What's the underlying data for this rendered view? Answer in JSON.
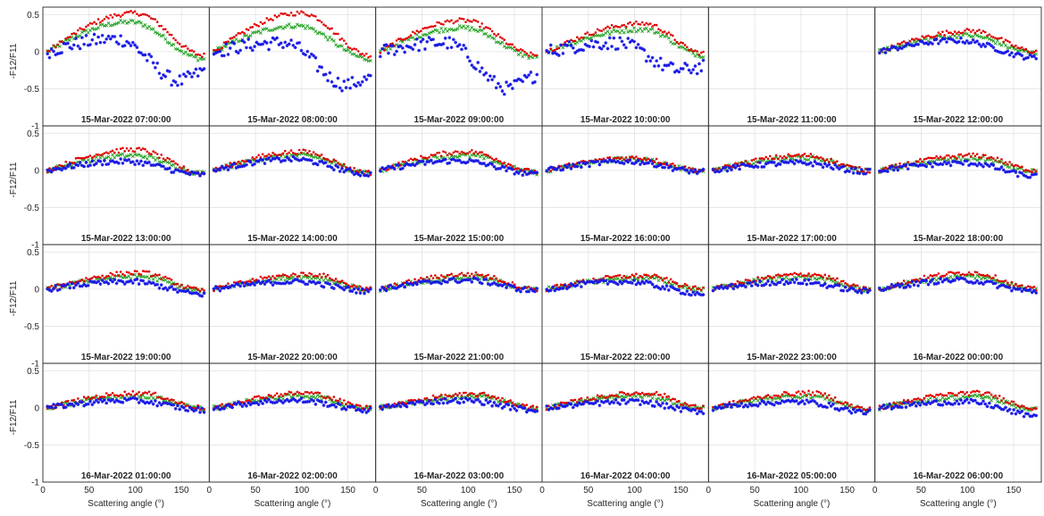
{
  "colors": {
    "background": "#ffffff",
    "grid": "#e3e3e3",
    "axis": "#262626",
    "red": "#e00000",
    "green": "#21a121",
    "blue": "#1a1ae6"
  },
  "chart_data": {
    "type": "scatter",
    "layout": {
      "rows": 4,
      "cols": 6
    },
    "xlabel": "Scattering angle (°)",
    "ylabel": "-F12/F11",
    "xlim": [
      0,
      180
    ],
    "ylim": [
      -1,
      0.6
    ],
    "xticks": [
      0,
      50,
      100,
      150
    ],
    "yticks": [
      -1,
      -0.5,
      0,
      0.5
    ],
    "xtick_labels": [
      "0",
      "50",
      "100",
      "150"
    ],
    "ytick_labels": [
      "-1",
      "-0.5",
      "0",
      "0.5"
    ],
    "grid": true,
    "markers": {
      "red": "dot",
      "green": "x",
      "blue": "star"
    },
    "x_range_of_points": [
      5,
      175
    ],
    "panels": [
      {
        "title": "15-Mar-2022 07:00:00",
        "red": {
          "peak": 0.52,
          "peak_x": 100,
          "end": -0.05
        },
        "green": {
          "peak": 0.4,
          "peak_x": 95,
          "end": -0.1
        },
        "blue": {
          "peak": 0.17,
          "peak_x": 80,
          "end": -0.25,
          "low": -0.4,
          "low_x": 150
        }
      },
      {
        "title": "15-Mar-2022 08:00:00",
        "red": {
          "peak": 0.52,
          "peak_x": 100,
          "end": -0.05
        },
        "green": {
          "peak": 0.35,
          "peak_x": 95,
          "end": -0.1
        },
        "blue": {
          "peak": 0.12,
          "peak_x": 80,
          "end": -0.35,
          "low": -0.45,
          "low_x": 150
        }
      },
      {
        "title": "15-Mar-2022 09:00:00",
        "red": {
          "peak": 0.42,
          "peak_x": 95,
          "end": -0.05
        },
        "green": {
          "peak": 0.32,
          "peak_x": 95,
          "end": -0.08
        },
        "blue": {
          "peak": 0.12,
          "peak_x": 75,
          "end": -0.3,
          "low": -0.5,
          "low_x": 145
        }
      },
      {
        "title": "15-Mar-2022 10:00:00",
        "red": {
          "peak": 0.38,
          "peak_x": 110,
          "end": -0.02
        },
        "green": {
          "peak": 0.3,
          "peak_x": 110,
          "end": -0.05
        },
        "blue": {
          "peak": 0.12,
          "peak_x": 80,
          "end": -0.2,
          "low": -0.25,
          "low_x": 150
        }
      },
      {
        "title": "15-Mar-2022 11:00:00",
        "empty": true
      },
      {
        "title": "15-Mar-2022 12:00:00",
        "red": {
          "peak": 0.28,
          "peak_x": 105,
          "end": 0.0
        },
        "green": {
          "peak": 0.22,
          "peak_x": 100,
          "end": -0.02
        },
        "blue": {
          "peak": 0.15,
          "peak_x": 90,
          "end": -0.08
        }
      },
      {
        "title": "15-Mar-2022 13:00:00",
        "red": {
          "peak": 0.28,
          "peak_x": 100,
          "end": -0.04
        },
        "green": {
          "peak": 0.2,
          "peak_x": 100,
          "end": -0.04
        },
        "blue": {
          "peak": 0.12,
          "peak_x": 90,
          "end": -0.06
        }
      },
      {
        "title": "15-Mar-2022 14:00:00",
        "red": {
          "peak": 0.25,
          "peak_x": 100,
          "end": -0.03
        },
        "green": {
          "peak": 0.2,
          "peak_x": 100,
          "end": -0.03
        },
        "blue": {
          "peak": 0.15,
          "peak_x": 90,
          "end": -0.05
        }
      },
      {
        "title": "15-Mar-2022 15:00:00",
        "red": {
          "peak": 0.25,
          "peak_x": 100,
          "end": -0.02
        },
        "green": {
          "peak": 0.2,
          "peak_x": 100,
          "end": -0.03
        },
        "blue": {
          "peak": 0.13,
          "peak_x": 90,
          "end": -0.05
        }
      },
      {
        "title": "15-Mar-2022 16:00:00",
        "red": {
          "peak": 0.17,
          "peak_x": 100,
          "end": 0.0
        },
        "green": {
          "peak": 0.15,
          "peak_x": 100,
          "end": -0.01
        },
        "blue": {
          "peak": 0.12,
          "peak_x": 95,
          "end": -0.02
        }
      },
      {
        "title": "15-Mar-2022 17:00:00",
        "red": {
          "peak": 0.2,
          "peak_x": 105,
          "end": 0.0
        },
        "green": {
          "peak": 0.17,
          "peak_x": 105,
          "end": -0.01
        },
        "blue": {
          "peak": 0.1,
          "peak_x": 100,
          "end": -0.02
        }
      },
      {
        "title": "15-Mar-2022 18:00:00",
        "red": {
          "peak": 0.2,
          "peak_x": 110,
          "end": 0.0
        },
        "green": {
          "peak": 0.16,
          "peak_x": 110,
          "end": -0.02
        },
        "blue": {
          "peak": 0.1,
          "peak_x": 100,
          "end": -0.08
        }
      },
      {
        "title": "15-Mar-2022 19:00:00",
        "red": {
          "peak": 0.22,
          "peak_x": 105,
          "end": -0.02
        },
        "green": {
          "peak": 0.17,
          "peak_x": 105,
          "end": -0.03
        },
        "blue": {
          "peak": 0.1,
          "peak_x": 95,
          "end": -0.07
        }
      },
      {
        "title": "15-Mar-2022 20:00:00",
        "red": {
          "peak": 0.2,
          "peak_x": 110,
          "end": 0.0
        },
        "green": {
          "peak": 0.16,
          "peak_x": 110,
          "end": -0.01
        },
        "blue": {
          "peak": 0.1,
          "peak_x": 95,
          "end": -0.03
        }
      },
      {
        "title": "15-Mar-2022 21:00:00",
        "red": {
          "peak": 0.2,
          "peak_x": 105,
          "end": 0.0
        },
        "green": {
          "peak": 0.16,
          "peak_x": 105,
          "end": -0.01
        },
        "blue": {
          "peak": 0.12,
          "peak_x": 100,
          "end": -0.02
        }
      },
      {
        "title": "15-Mar-2022 22:00:00",
        "red": {
          "peak": 0.18,
          "peak_x": 110,
          "end": 0.0
        },
        "green": {
          "peak": 0.15,
          "peak_x": 110,
          "end": -0.01
        },
        "blue": {
          "peak": 0.1,
          "peak_x": 90,
          "end": -0.06
        }
      },
      {
        "title": "15-Mar-2022 23:00:00",
        "red": {
          "peak": 0.2,
          "peak_x": 110,
          "end": 0.0
        },
        "green": {
          "peak": 0.16,
          "peak_x": 105,
          "end": -0.01
        },
        "blue": {
          "peak": 0.1,
          "peak_x": 95,
          "end": -0.03
        }
      },
      {
        "title": "16-Mar-2022 00:00:00",
        "red": {
          "peak": 0.22,
          "peak_x": 105,
          "end": 0.0
        },
        "green": {
          "peak": 0.17,
          "peak_x": 105,
          "end": -0.01
        },
        "blue": {
          "peak": 0.12,
          "peak_x": 95,
          "end": -0.03
        }
      },
      {
        "title": "16-Mar-2022 01:00:00",
        "red": {
          "peak": 0.2,
          "peak_x": 105,
          "end": 0.0
        },
        "green": {
          "peak": 0.16,
          "peak_x": 105,
          "end": -0.01
        },
        "blue": {
          "peak": 0.1,
          "peak_x": 95,
          "end": -0.03
        }
      },
      {
        "title": "16-Mar-2022 02:00:00",
        "red": {
          "peak": 0.2,
          "peak_x": 105,
          "end": 0.0
        },
        "green": {
          "peak": 0.16,
          "peak_x": 105,
          "end": -0.01
        },
        "blue": {
          "peak": 0.1,
          "peak_x": 95,
          "end": -0.03
        }
      },
      {
        "title": "16-Mar-2022 03:00:00",
        "red": {
          "peak": 0.18,
          "peak_x": 110,
          "end": 0.0
        },
        "green": {
          "peak": 0.15,
          "peak_x": 110,
          "end": -0.01
        },
        "blue": {
          "peak": 0.1,
          "peak_x": 95,
          "end": -0.03
        }
      },
      {
        "title": "16-Mar-2022 04:00:00",
        "red": {
          "peak": 0.2,
          "peak_x": 115,
          "end": 0.0
        },
        "green": {
          "peak": 0.16,
          "peak_x": 110,
          "end": -0.01
        },
        "blue": {
          "peak": 0.08,
          "peak_x": 100,
          "end": -0.05
        }
      },
      {
        "title": "16-Mar-2022 05:00:00",
        "red": {
          "peak": 0.2,
          "peak_x": 110,
          "end": -0.02
        },
        "green": {
          "peak": 0.16,
          "peak_x": 110,
          "end": -0.03
        },
        "blue": {
          "peak": 0.08,
          "peak_x": 100,
          "end": -0.06
        }
      },
      {
        "title": "16-Mar-2022 06:00:00",
        "red": {
          "peak": 0.2,
          "peak_x": 110,
          "end": 0.0
        },
        "green": {
          "peak": 0.15,
          "peak_x": 110,
          "end": -0.02
        },
        "blue": {
          "peak": 0.08,
          "peak_x": 100,
          "end": -0.1
        }
      }
    ]
  }
}
